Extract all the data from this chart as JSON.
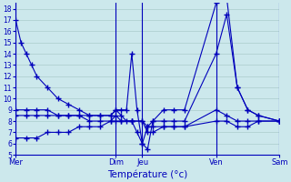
{
  "xlabel": "Température (°c)",
  "bg_color": "#cce8ec",
  "grid_color": "#aacccc",
  "line_color": "#0000bb",
  "ylim": [
    5,
    18.5
  ],
  "yticks": [
    5,
    6,
    7,
    8,
    9,
    10,
    11,
    12,
    13,
    14,
    15,
    16,
    17,
    18
  ],
  "day_positions": [
    0,
    19,
    24,
    38,
    50
  ],
  "day_labels": [
    "Mer",
    "Dim",
    "Jeu",
    "Ven",
    "Sam"
  ],
  "series1_x": [
    0,
    1,
    2,
    3,
    4,
    6,
    8,
    10,
    12,
    14,
    16,
    18,
    19,
    20,
    21,
    22,
    23,
    24,
    25,
    26,
    28,
    30,
    32,
    38,
    40,
    42,
    44,
    46,
    50
  ],
  "series1_y": [
    17,
    15,
    14,
    13,
    12,
    11,
    10,
    9.5,
    9,
    8.5,
    8.5,
    8.5,
    9,
    9,
    9,
    14,
    9,
    6,
    5.5,
    8,
    9,
    9,
    9,
    18.5,
    19,
    11,
    9,
    8.5,
    8
  ],
  "series2_x": [
    0,
    2,
    4,
    6,
    8,
    10,
    12,
    14,
    16,
    18,
    19,
    20,
    21,
    22,
    23,
    24,
    25,
    26,
    28,
    30,
    32,
    38,
    40,
    42,
    44,
    46,
    50
  ],
  "series2_y": [
    9,
    9,
    9,
    9,
    8.5,
    8.5,
    8.5,
    8.5,
    8.5,
    8.5,
    9,
    8.5,
    8,
    8,
    7,
    6,
    7.5,
    8,
    8,
    8,
    8,
    14,
    17.5,
    11,
    9,
    8.5,
    8
  ],
  "series3_x": [
    0,
    2,
    4,
    6,
    8,
    10,
    12,
    14,
    16,
    18,
    19,
    20,
    22,
    24,
    25,
    26,
    28,
    30,
    32,
    38,
    40,
    42,
    44,
    46,
    50
  ],
  "series3_y": [
    8.5,
    8.5,
    8.5,
    8.5,
    8.5,
    8.5,
    8.5,
    8,
    8,
    8,
    8.5,
    8,
    8,
    8,
    7.5,
    7.5,
    7.5,
    7.5,
    7.5,
    9,
    8.5,
    8,
    8,
    8,
    8
  ],
  "series4_x": [
    0,
    2,
    4,
    6,
    8,
    10,
    12,
    14,
    16,
    18,
    19,
    20,
    22,
    24,
    25,
    26,
    28,
    30,
    32,
    38,
    40,
    42,
    44,
    46,
    50
  ],
  "series4_y": [
    6.5,
    6.5,
    6.5,
    7,
    7,
    7,
    7.5,
    7.5,
    7.5,
    8,
    8,
    8,
    8,
    8,
    7,
    7,
    7.5,
    7.5,
    7.5,
    8,
    8,
    7.5,
    7.5,
    8,
    8
  ]
}
